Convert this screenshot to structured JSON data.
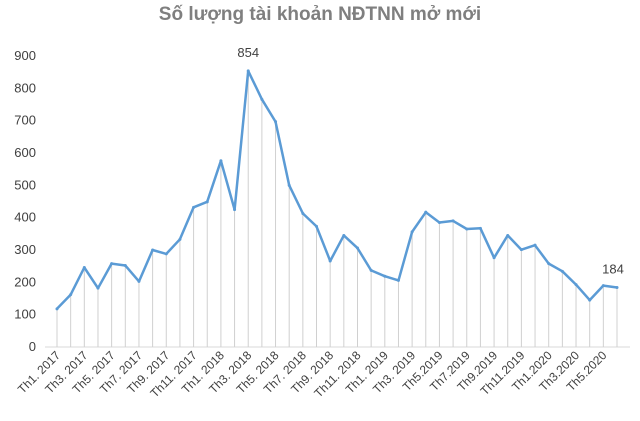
{
  "chart_data": {
    "type": "line",
    "title": "Số lượng tài khoản NĐTNN mở mới",
    "xlabel": "",
    "ylabel": "",
    "ylim": [
      0,
      900
    ],
    "yticks": [
      0,
      100,
      200,
      300,
      400,
      500,
      600,
      700,
      800,
      900
    ],
    "grid": false,
    "line_color": "#5b9bd5",
    "x_tick_labels": [
      "Th1. 2017",
      "Th3. 2017",
      "Th5. 2017",
      "Th7. 2017",
      "Th9. 2017",
      "Th11. 2017",
      "Th1. 2018",
      "Th3. 2018",
      "Th5. 2018",
      "Th7. 2018",
      "Th9. 2018",
      "Th11. 2018",
      "Th1. 2019",
      "Th3. 2019",
      "Th5.2019",
      "Th7.2019",
      "Th9.2019",
      "Th11.2019",
      "Th1.2020",
      "Th3.2020",
      "Th5.2020"
    ],
    "values": [
      118,
      162,
      246,
      182,
      258,
      252,
      203,
      300,
      288,
      333,
      432,
      449,
      576,
      425,
      854,
      766,
      697,
      500,
      413,
      373,
      266,
      345,
      306,
      237,
      219,
      206,
      356,
      417,
      385,
      390,
      365,
      367,
      276,
      345,
      301,
      315,
      258,
      234,
      193,
      145,
      190,
      184
    ],
    "data_labels": [
      {
        "index": 14,
        "text": "854"
      },
      {
        "index": 41,
        "text": "184"
      }
    ]
  }
}
